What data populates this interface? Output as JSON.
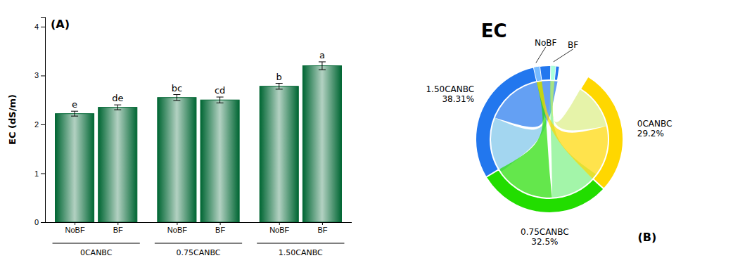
{
  "chart_data": [
    {
      "type": "bar",
      "categories": [
        "NoBF",
        "BF",
        "NoBF",
        "BF",
        "NoBF",
        "BF"
      ],
      "groups": [
        "0CANBC",
        "0.75CANBC",
        "1.50CANBC"
      ],
      "values": [
        2.22,
        2.35,
        2.55,
        2.5,
        2.78,
        3.2
      ],
      "errors": [
        0.05,
        0.05,
        0.06,
        0.06,
        0.06,
        0.08
      ],
      "labels": [
        "e",
        "de",
        "bc",
        "cd",
        "b",
        "a"
      ],
      "ylabel": "EC (dS/m)",
      "ylim": [
        0,
        4.2
      ],
      "yticks": [
        0,
        1,
        2,
        3,
        4
      ],
      "color": "#006633",
      "grid": false,
      "annotations": [
        "(A)"
      ]
    },
    {
      "type": "chord",
      "title": "EC",
      "categories": [
        "1.50CANBC",
        "0.75CANBC",
        "0CANBC"
      ],
      "values": [
        38.31,
        32.5,
        29.2
      ],
      "value_labels": [
        "38.31%",
        "32.5%",
        "29.2%"
      ],
      "colors": [
        "#2277EE",
        "#22DD00",
        "#FFD700"
      ],
      "data_labels": true,
      "series": [
        {
          "name": "NoBF",
          "color": "#77BBFF"
        },
        {
          "name": "BF",
          "color": "#AAFFDD"
        }
      ],
      "annotations": [
        "(B)"
      ]
    }
  ]
}
